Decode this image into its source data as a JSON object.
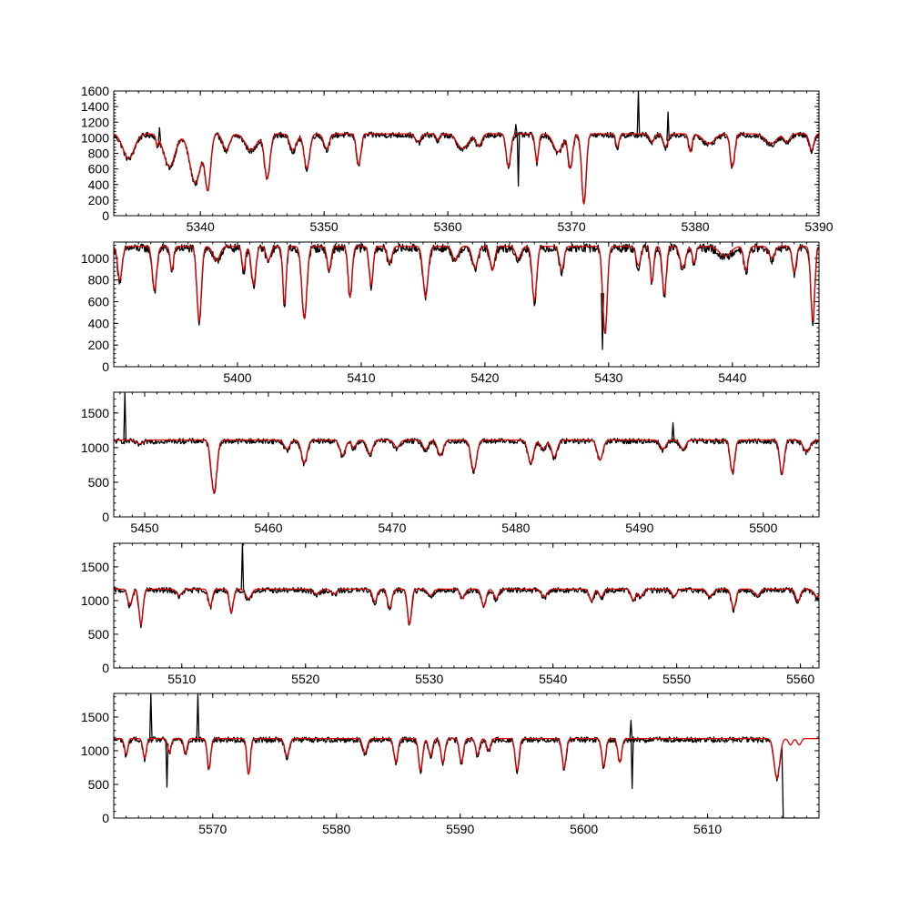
{
  "chart_data": [
    {
      "type": "line",
      "xlim": [
        5333,
        5390
      ],
      "ylim": [
        0,
        1600
      ],
      "x_ticks": [
        5340,
        5350,
        5360,
        5370,
        5380,
        5390
      ],
      "y_ticks": [
        0,
        200,
        400,
        600,
        800,
        1000,
        1200,
        1400,
        1600
      ],
      "continuum": 1050,
      "lines": [
        [
          5334.2,
          1.0,
          0.3
        ],
        [
          5336.5,
          0.2,
          0.12
        ],
        [
          5337.5,
          1.0,
          0.4
        ],
        [
          5339.6,
          1.0,
          0.6
        ],
        [
          5340.6,
          0.5,
          0.68
        ],
        [
          5342.1,
          0.6,
          0.2
        ],
        [
          5344.1,
          1.0,
          0.2
        ],
        [
          5345.4,
          0.5,
          0.55
        ],
        [
          5347.5,
          0.6,
          0.2
        ],
        [
          5348.6,
          0.5,
          0.42
        ],
        [
          5350.2,
          0.5,
          0.18
        ],
        [
          5352.8,
          0.4,
          0.38
        ],
        [
          5357.6,
          0.5,
          0.1
        ],
        [
          5359.2,
          0.3,
          0.08
        ],
        [
          5361.2,
          1.0,
          0.18
        ],
        [
          5362.5,
          0.5,
          0.15
        ],
        [
          5364.9,
          0.4,
          0.4
        ],
        [
          5367.2,
          0.3,
          0.35
        ],
        [
          5368.9,
          0.8,
          0.22
        ],
        [
          5369.9,
          0.4,
          0.42
        ],
        [
          5371.0,
          0.4,
          0.85
        ],
        [
          5373.7,
          0.3,
          0.16
        ],
        [
          5376.5,
          0.4,
          0.1
        ],
        [
          5377.6,
          0.4,
          0.16
        ],
        [
          5379.6,
          0.3,
          0.22
        ],
        [
          5381.1,
          1.0,
          0.12
        ],
        [
          5383.0,
          0.4,
          0.4
        ],
        [
          5386.1,
          1.0,
          0.12
        ],
        [
          5387.4,
          0.5,
          0.1
        ],
        [
          5389.4,
          0.4,
          0.2
        ]
      ],
      "spikes": [
        [
          5336.7,
          1130
        ],
        [
          5365.5,
          1170
        ],
        [
          5365.7,
          380
        ],
        [
          5375.4,
          1600
        ],
        [
          5377.8,
          1330
        ]
      ],
      "observed_end": null,
      "model_tail": [],
      "series": [
        {
          "color": "#000000"
        },
        {
          "color": "#dd0000"
        }
      ]
    },
    {
      "type": "line",
      "xlim": [
        5390,
        5447
      ],
      "ylim": [
        0,
        1150
      ],
      "x_ticks": [
        5400,
        5410,
        5420,
        5430,
        5440
      ],
      "y_ticks": [
        0,
        200,
        400,
        600,
        800,
        1000
      ],
      "continuum": 1110,
      "lines": [
        [
          5390.5,
          0.4,
          0.28
        ],
        [
          5393.3,
          0.4,
          0.36
        ],
        [
          5394.7,
          0.3,
          0.2
        ],
        [
          5396.9,
          0.4,
          0.62
        ],
        [
          5398.3,
          0.6,
          0.12
        ],
        [
          5400.5,
          0.3,
          0.2
        ],
        [
          5401.3,
          0.4,
          0.32
        ],
        [
          5402.5,
          0.4,
          0.12
        ],
        [
          5403.8,
          0.3,
          0.48
        ],
        [
          5405.4,
          0.45,
          0.6
        ],
        [
          5407.4,
          0.35,
          0.2
        ],
        [
          5409.1,
          0.35,
          0.42
        ],
        [
          5410.8,
          0.35,
          0.32
        ],
        [
          5412.3,
          0.4,
          0.14
        ],
        [
          5415.2,
          0.45,
          0.42
        ],
        [
          5417.6,
          0.5,
          0.12
        ],
        [
          5419.2,
          0.5,
          0.18
        ],
        [
          5420.6,
          0.4,
          0.2
        ],
        [
          5422.7,
          0.5,
          0.1
        ],
        [
          5424.0,
          0.4,
          0.45
        ],
        [
          5426.2,
          0.4,
          0.2
        ],
        [
          5429.7,
          0.4,
          0.72
        ],
        [
          5432.4,
          0.4,
          0.16
        ],
        [
          5433.5,
          0.3,
          0.3
        ],
        [
          5434.5,
          0.35,
          0.4
        ],
        [
          5436.0,
          0.5,
          0.18
        ],
        [
          5436.9,
          0.3,
          0.14
        ],
        [
          5439.4,
          1.0,
          0.08
        ],
        [
          5441.1,
          0.4,
          0.2
        ],
        [
          5443.2,
          0.5,
          0.1
        ],
        [
          5445.0,
          0.35,
          0.22
        ],
        [
          5446.5,
          0.35,
          0.62
        ]
      ],
      "spikes": [
        [
          5429.5,
          160
        ]
      ],
      "observed_end": null,
      "model_tail": [],
      "series": [
        {
          "color": "#000000"
        },
        {
          "color": "#dd0000"
        }
      ]
    },
    {
      "type": "line",
      "xlim": [
        5447.5,
        5504.5
      ],
      "ylim": [
        0,
        1800
      ],
      "x_ticks": [
        5450,
        5460,
        5470,
        5480,
        5490,
        5500
      ],
      "y_ticks": [
        0,
        500,
        1000,
        1500
      ],
      "continuum": 1110,
      "lines": [
        [
          5449.6,
          0.6,
          0.05
        ],
        [
          5455.6,
          0.5,
          0.68
        ],
        [
          5461.5,
          0.5,
          0.12
        ],
        [
          5462.9,
          0.5,
          0.3
        ],
        [
          5466.0,
          0.5,
          0.2
        ],
        [
          5466.9,
          0.4,
          0.1
        ],
        [
          5468.2,
          0.5,
          0.18
        ],
        [
          5470.4,
          0.5,
          0.1
        ],
        [
          5472.7,
          0.5,
          0.12
        ],
        [
          5473.9,
          0.5,
          0.2
        ],
        [
          5476.6,
          0.5,
          0.4
        ],
        [
          5481.2,
          0.5,
          0.3
        ],
        [
          5482.2,
          0.5,
          0.12
        ],
        [
          5483.1,
          0.5,
          0.22
        ],
        [
          5486.8,
          0.5,
          0.26
        ],
        [
          5491.9,
          0.5,
          0.12
        ],
        [
          5493.5,
          0.5,
          0.12
        ],
        [
          5497.5,
          0.4,
          0.42
        ],
        [
          5501.5,
          0.4,
          0.44
        ],
        [
          5503.5,
          0.6,
          0.15
        ]
      ],
      "spikes": [
        [
          5448.4,
          1800
        ],
        [
          5492.7,
          1360
        ]
      ],
      "observed_end": null,
      "model_tail": [],
      "series": [
        {
          "color": "#000000"
        },
        {
          "color": "#dd0000"
        }
      ]
    },
    {
      "type": "line",
      "xlim": [
        5504.5,
        5561.5
      ],
      "ylim": [
        0,
        1850
      ],
      "x_ticks": [
        5510,
        5520,
        5530,
        5540,
        5550,
        5560
      ],
      "y_ticks": [
        0,
        500,
        1000,
        1500
      ],
      "continuum": 1170,
      "lines": [
        [
          5505.8,
          0.4,
          0.2
        ],
        [
          5506.7,
          0.35,
          0.45
        ],
        [
          5509.8,
          0.5,
          0.08
        ],
        [
          5512.3,
          0.35,
          0.22
        ],
        [
          5514.0,
          0.35,
          0.3
        ],
        [
          5515.4,
          0.5,
          0.12
        ],
        [
          5520.9,
          0.6,
          0.06
        ],
        [
          5522.3,
          0.5,
          0.06
        ],
        [
          5525.6,
          0.4,
          0.16
        ],
        [
          5526.8,
          0.4,
          0.24
        ],
        [
          5528.4,
          0.35,
          0.45
        ],
        [
          5530.1,
          0.5,
          0.08
        ],
        [
          5532.7,
          0.4,
          0.12
        ],
        [
          5534.4,
          0.4,
          0.22
        ],
        [
          5535.4,
          0.4,
          0.12
        ],
        [
          5539.3,
          0.5,
          0.1
        ],
        [
          5543.1,
          0.4,
          0.15
        ],
        [
          5543.9,
          0.4,
          0.1
        ],
        [
          5546.5,
          0.4,
          0.14
        ],
        [
          5547.1,
          0.4,
          0.1
        ],
        [
          5549.8,
          0.4,
          0.1
        ],
        [
          5552.7,
          0.5,
          0.1
        ],
        [
          5554.6,
          0.4,
          0.25
        ],
        [
          5556.5,
          0.5,
          0.08
        ],
        [
          5559.8,
          0.4,
          0.16
        ],
        [
          5561.3,
          0.5,
          0.1
        ]
      ],
      "spikes": [
        [
          5514.9,
          1850
        ]
      ],
      "observed_end": null,
      "model_tail": [],
      "series": [
        {
          "color": "#000000"
        },
        {
          "color": "#dd0000"
        }
      ]
    },
    {
      "type": "line",
      "xlim": [
        5562,
        5619
      ],
      "ylim": [
        0,
        1850
      ],
      "x_ticks": [
        5570,
        5580,
        5590,
        5600,
        5610
      ],
      "y_ticks": [
        0,
        500,
        1000,
        1500
      ],
      "continuum": 1180,
      "lines": [
        [
          5563.0,
          0.3,
          0.2
        ],
        [
          5564.5,
          0.3,
          0.25
        ],
        [
          5566.5,
          0.3,
          0.18
        ],
        [
          5567.8,
          0.3,
          0.18
        ],
        [
          5569.7,
          0.3,
          0.38
        ],
        [
          5572.9,
          0.3,
          0.45
        ],
        [
          5576.0,
          0.4,
          0.22
        ],
        [
          5582.3,
          0.4,
          0.18
        ],
        [
          5584.8,
          0.35,
          0.3
        ],
        [
          5586.8,
          0.35,
          0.4
        ],
        [
          5587.6,
          0.35,
          0.22
        ],
        [
          5588.6,
          0.35,
          0.3
        ],
        [
          5590.1,
          0.35,
          0.3
        ],
        [
          5591.4,
          0.35,
          0.2
        ],
        [
          5592.3,
          0.35,
          0.15
        ],
        [
          5594.6,
          0.35,
          0.4
        ],
        [
          5598.4,
          0.35,
          0.38
        ],
        [
          5601.6,
          0.35,
          0.35
        ],
        [
          5602.9,
          0.35,
          0.3
        ],
        [
          5615.6,
          0.5,
          0.5
        ],
        [
          5616.7,
          0.35,
          0.08
        ],
        [
          5617.4,
          0.35,
          0.08
        ]
      ],
      "spikes": [
        [
          5565.0,
          1850
        ],
        [
          5566.3,
          460
        ],
        [
          5568.8,
          1850
        ],
        [
          5603.8,
          1450
        ],
        [
          5603.9,
          440
        ]
      ],
      "observed_end": 5616.0,
      "model_tail": [
        5616.0,
        5619.0
      ],
      "series": [
        {
          "color": "#000000"
        },
        {
          "color": "#dd0000"
        }
      ]
    }
  ]
}
